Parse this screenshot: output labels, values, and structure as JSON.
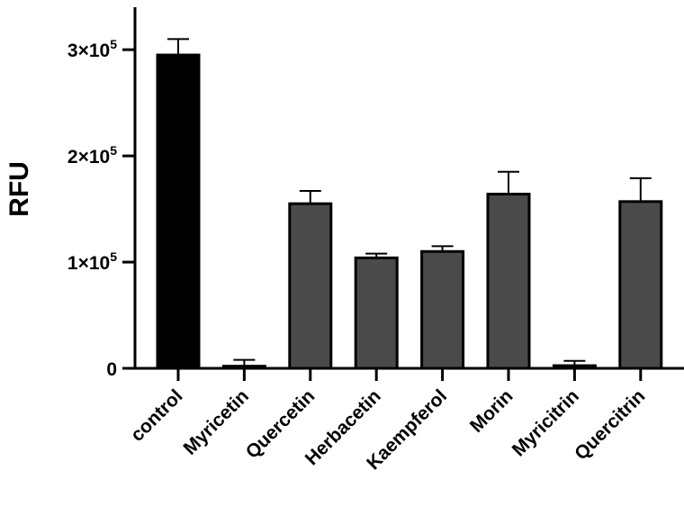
{
  "chart_data": {
    "type": "bar",
    "title": "",
    "xlabel": "",
    "ylabel": "RFU",
    "ylim": [
      0,
      340000
    ],
    "grid": false,
    "legend": "none",
    "y_ticks": [
      {
        "value": 0,
        "base": "0",
        "exp": ""
      },
      {
        "value": 100000,
        "base": "1×10",
        "exp": "5"
      },
      {
        "value": 200000,
        "base": "2×10",
        "exp": "5"
      },
      {
        "value": 300000,
        "base": "3×10",
        "exp": "5"
      }
    ],
    "categories": [
      "control",
      "Myricetin",
      "Quercetin",
      "Herbacetin",
      "Kaempferol",
      "Morin",
      "Myricitrin",
      "Quercitrin"
    ],
    "values": [
      295000,
      2000,
      155000,
      104000,
      110000,
      164000,
      2500,
      157000
    ],
    "errors": [
      15000,
      6000,
      12000,
      4000,
      5000,
      21000,
      4500,
      22000
    ],
    "colors": [
      "#000000",
      "#4a4a4a",
      "#4a4a4a",
      "#4a4a4a",
      "#4a4a4a",
      "#4a4a4a",
      "#4a4a4a",
      "#4a4a4a"
    ]
  }
}
